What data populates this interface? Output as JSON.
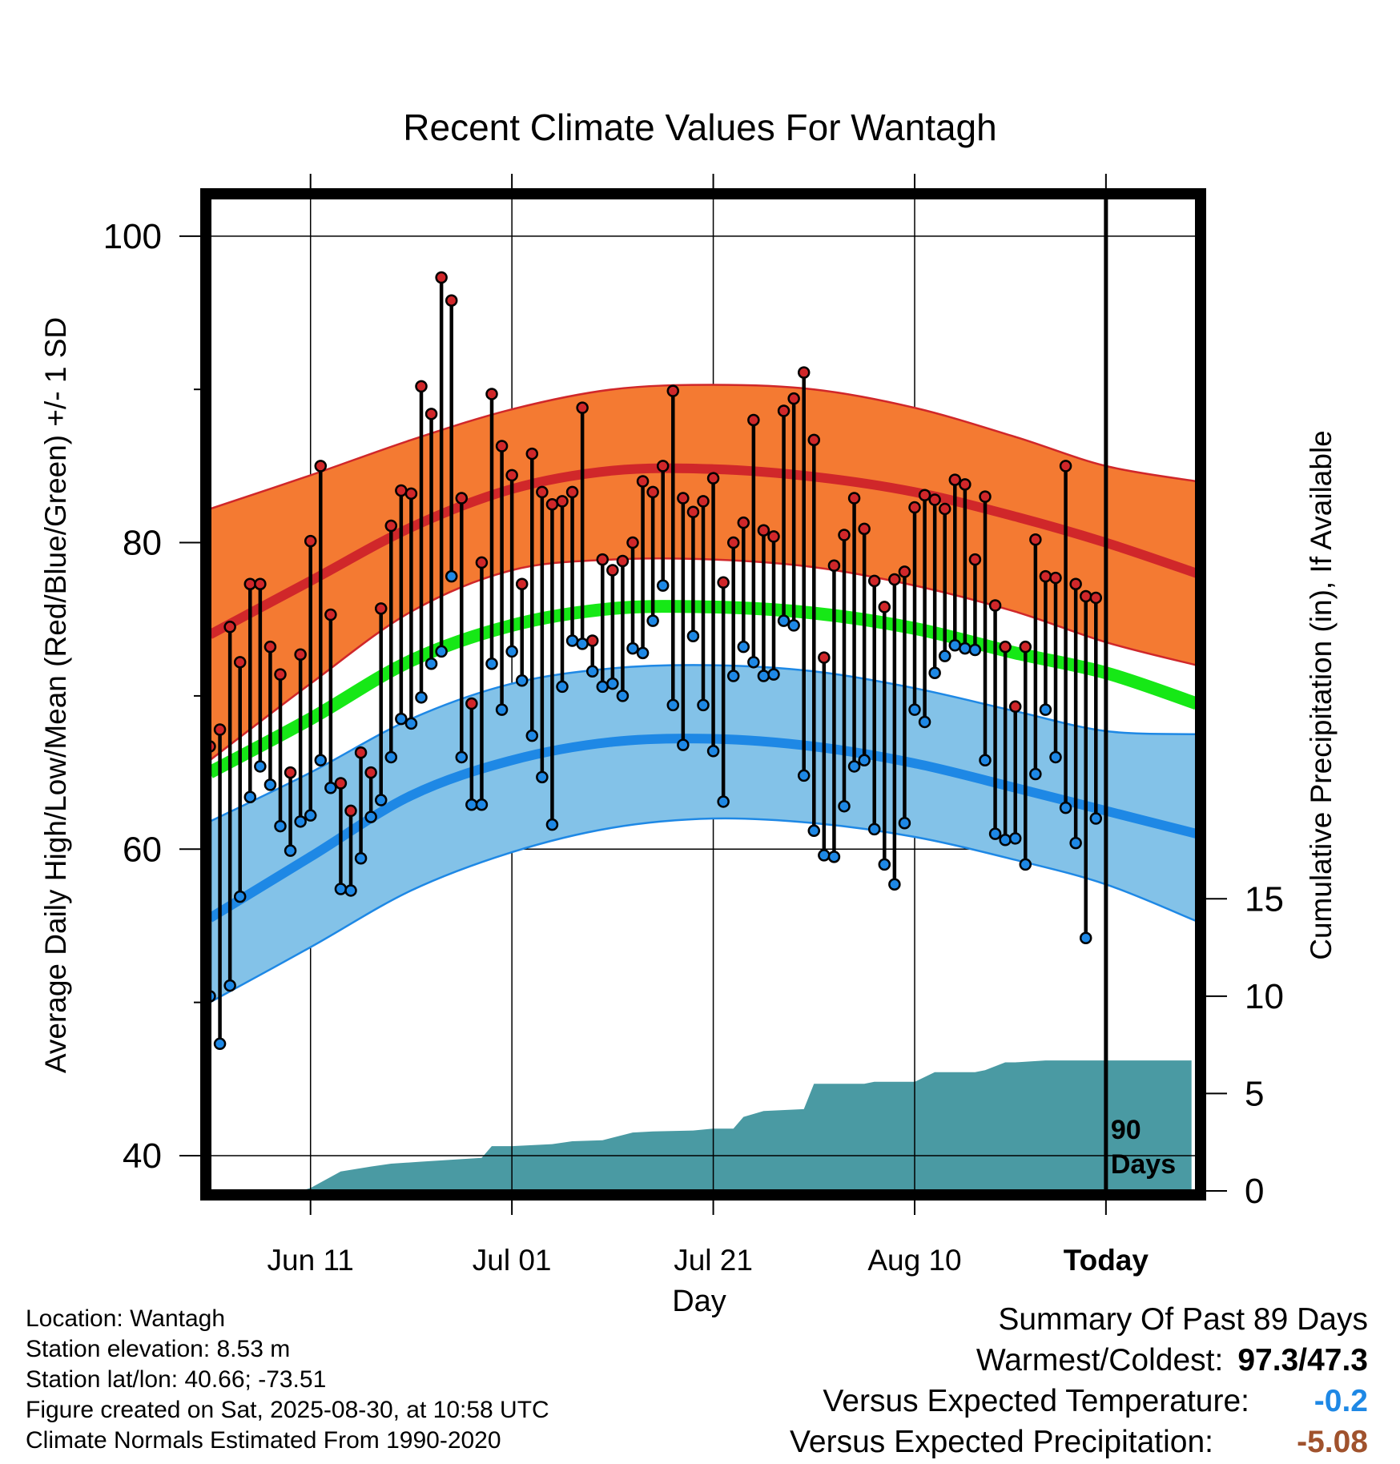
{
  "chart_data": {
    "type": "line",
    "title": "Recent Climate Values For Wantagh",
    "xlabel": "Day",
    "ylabel_left": "Average Daily High/Low/Mean (Red/Blue/Green) +/- 1 SD",
    "ylabel_right": "Cumulative Precipitation (in), If Available",
    "x_range_days": [
      -89,
      9
    ],
    "x_ticks": [
      {
        "day": -79,
        "label": "Jun 11"
      },
      {
        "day": -59,
        "label": "Jul 01"
      },
      {
        "day": -39,
        "label": "Jul 21"
      },
      {
        "day": -19,
        "label": "Aug 10"
      },
      {
        "day": 0,
        "label": "Today"
      }
    ],
    "today_marker": {
      "day": 0,
      "label_line1": "90",
      "label_line2": "Days"
    },
    "y_left_ticks": [
      40,
      60,
      80,
      100
    ],
    "y_left_range": [
      37.7,
      102.5
    ],
    "y_right_ticks": [
      0,
      5,
      10,
      15
    ],
    "y_right_range": [
      0,
      51
    ],
    "grid": true,
    "colors": {
      "high_band": "#f47a32",
      "high_line": "#d0272a",
      "low_band": "#83c2e8",
      "low_line": "#1e88e5",
      "mean_line": "#16e816",
      "precip_fill": "#4a9aa3",
      "obs_high_dot": "#d0272a",
      "obs_low_dot": "#1e88e5",
      "anomaly_temp": "#1e88e5",
      "anomaly_precip": "#a0522d"
    },
    "normals_days": [
      -89,
      -79,
      -69,
      -59,
      -49,
      -39,
      -29,
      -19,
      -9,
      0,
      9
    ],
    "normal_high": [
      74.0,
      77.5,
      81.0,
      83.5,
      84.7,
      84.8,
      84.3,
      83.3,
      81.7,
      80.0,
      78.0
    ],
    "normal_high_sd_upper": [
      82.2,
      84.4,
      86.7,
      88.7,
      90.0,
      90.3,
      90.0,
      88.8,
      86.9,
      85.0,
      84.0
    ],
    "normal_high_sd_lower": [
      65.8,
      70.8,
      75.5,
      78.2,
      78.9,
      78.9,
      78.4,
      77.2,
      75.5,
      73.5,
      72.0
    ],
    "normal_mean": [
      65.0,
      68.5,
      72.3,
      74.6,
      75.7,
      75.8,
      75.4,
      74.4,
      72.8,
      71.5,
      69.5
    ],
    "normal_low": [
      55.5,
      59.5,
      63.5,
      65.8,
      67.0,
      67.2,
      66.7,
      65.6,
      64.0,
      62.5,
      61.0
    ],
    "normal_low_sd_upper": [
      61.8,
      65.0,
      68.5,
      70.8,
      71.8,
      72.0,
      71.6,
      70.5,
      69.0,
      67.7,
      67.5
    ],
    "normal_low_sd_lower": [
      50.0,
      53.6,
      57.3,
      59.8,
      61.4,
      62.0,
      61.7,
      60.8,
      59.3,
      57.7,
      55.3
    ],
    "observed": {
      "days": [
        -89,
        -88,
        -87,
        -86,
        -85,
        -84,
        -83,
        -82,
        -81,
        -80,
        -79,
        -78,
        -77,
        -76,
        -75,
        -74,
        -73,
        -72,
        -71,
        -70,
        -69,
        -68,
        -67,
        -66,
        -65,
        -64,
        -63,
        -62,
        -61,
        -60,
        -59,
        -58,
        -57,
        -56,
        -55,
        -54,
        -53,
        -52,
        -51,
        -50,
        -49,
        -48,
        -47,
        -46,
        -45,
        -44,
        -43,
        -42,
        -41,
        -40,
        -39,
        -38,
        -37,
        -36,
        -35,
        -34,
        -33,
        -32,
        -31,
        -30,
        -29,
        -28,
        -27,
        -26,
        -25,
        -24,
        -23,
        -22,
        -21,
        -20,
        -19,
        -18,
        -17,
        -16,
        -15,
        -14,
        -13,
        -12,
        -11,
        -10,
        -9,
        -8,
        -7,
        -6,
        -5,
        -4,
        -3,
        -2,
        -1
      ],
      "high": [
        66.7,
        67.8,
        74.5,
        72.2,
        77.3,
        77.3,
        73.2,
        71.4,
        65.0,
        72.7,
        80.1,
        85.0,
        75.3,
        64.3,
        62.5,
        66.3,
        65.0,
        75.7,
        81.1,
        83.4,
        83.2,
        90.2,
        88.4,
        97.3,
        95.8,
        82.9,
        69.5,
        78.7,
        89.7,
        86.3,
        84.4,
        77.3,
        85.8,
        83.3,
        82.5,
        82.7,
        83.3,
        88.8,
        73.6,
        78.9,
        78.2,
        78.8,
        80.0,
        84.0,
        83.3,
        85.0,
        89.9,
        82.9,
        82.0,
        82.7,
        84.2,
        77.4,
        80.0,
        81.3,
        88.0,
        80.8,
        80.4,
        88.6,
        89.4,
        91.1,
        86.7,
        72.5,
        78.5,
        80.5,
        82.9,
        80.9,
        77.5,
        75.8,
        77.6,
        78.1,
        82.3,
        83.1,
        82.8,
        82.2,
        84.1,
        83.8,
        78.9,
        83.0,
        75.9,
        73.2,
        69.3,
        73.2,
        80.2,
        77.8,
        77.7,
        85.0,
        77.3,
        76.5,
        76.4
      ],
      "low": [
        50.4,
        47.3,
        51.1,
        56.9,
        63.4,
        65.4,
        64.2,
        61.5,
        59.9,
        61.8,
        62.2,
        65.8,
        64.0,
        57.4,
        57.3,
        59.4,
        62.1,
        63.2,
        66.0,
        68.5,
        68.2,
        69.9,
        72.1,
        72.9,
        77.8,
        66.0,
        62.9,
        62.9,
        72.1,
        69.1,
        72.9,
        71.0,
        67.4,
        64.7,
        61.6,
        70.6,
        73.6,
        73.4,
        71.6,
        70.6,
        70.8,
        70.0,
        73.1,
        72.8,
        74.9,
        77.2,
        69.4,
        66.8,
        73.9,
        69.4,
        66.4,
        63.1,
        71.3,
        73.2,
        72.2,
        71.3,
        71.4,
        74.9,
        74.6,
        64.8,
        61.2,
        59.6,
        59.5,
        62.8,
        65.4,
        65.8,
        61.3,
        59.0,
        57.7,
        61.7,
        69.1,
        68.3,
        71.5,
        72.6,
        73.3,
        73.1,
        73.0,
        65.8,
        61.0,
        60.6,
        60.7,
        59.0,
        64.9,
        69.1,
        66.0,
        62.7,
        60.4,
        54.2,
        62.0
      ]
    },
    "precip_cumulative": {
      "days": [
        -89,
        -80,
        -79,
        -76,
        -73,
        -71,
        -68,
        -62,
        -61,
        -59,
        -55,
        -53,
        -50,
        -47,
        -45,
        -41,
        -39,
        -37,
        -36,
        -34,
        -30,
        -29,
        -24,
        -23,
        -20,
        -19,
        -17,
        -13,
        -12,
        -10,
        -9,
        -6,
        -5,
        0,
        8.5
      ],
      "values": [
        0.0,
        0.0,
        0.15,
        1.0,
        1.25,
        1.4,
        1.5,
        1.7,
        2.3,
        2.3,
        2.4,
        2.55,
        2.6,
        3.0,
        3.05,
        3.1,
        3.2,
        3.2,
        3.8,
        4.1,
        4.2,
        5.5,
        5.5,
        5.6,
        5.6,
        5.6,
        6.1,
        6.1,
        6.2,
        6.6,
        6.6,
        6.7,
        6.7,
        6.7,
        6.7
      ]
    }
  },
  "info": {
    "location": "Location: Wantagh",
    "elevation": "Station elevation: 8.53 m",
    "latlon": "Station lat/lon: 40.66; -73.51",
    "created": "Figure created on Sat, 2025-08-30, at 10:58 UTC",
    "normals": "Climate Normals Estimated From 1990-2020"
  },
  "summary": {
    "title": "Summary Of Past 89 Days",
    "warm_cold_label": "Warmest/Coldest:",
    "warm_cold_value": "97.3/47.3",
    "temp_label": "Versus Expected Temperature:",
    "temp_value": "-0.2",
    "precip_label": "Versus Expected Precipitation:",
    "precip_value": "-5.08"
  }
}
